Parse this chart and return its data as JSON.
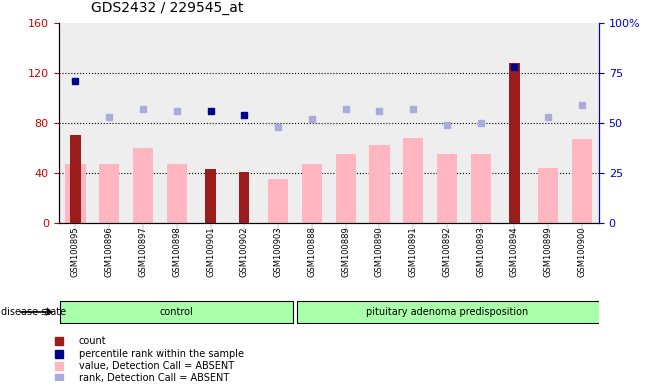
{
  "title": "GDS2432 / 229545_at",
  "samples": [
    "GSM100895",
    "GSM100896",
    "GSM100897",
    "GSM100898",
    "GSM100901",
    "GSM100902",
    "GSM100903",
    "GSM100888",
    "GSM100889",
    "GSM100890",
    "GSM100891",
    "GSM100892",
    "GSM100893",
    "GSM100894",
    "GSM100899",
    "GSM100900"
  ],
  "group_labels": [
    "control",
    "pituitary adenoma predisposition"
  ],
  "group_split": 7,
  "count_values": [
    70,
    0,
    0,
    0,
    43,
    41,
    0,
    0,
    0,
    0,
    0,
    0,
    0,
    128,
    0,
    0
  ],
  "value_absent": [
    47,
    47,
    60,
    47,
    0,
    0,
    35,
    47,
    55,
    62,
    68,
    55,
    55,
    0,
    44,
    67
  ],
  "percentile_rank_present": [
    71,
    null,
    null,
    null,
    56,
    54,
    null,
    null,
    null,
    null,
    null,
    null,
    null,
    78,
    null,
    null
  ],
  "percentile_rank_absent": [
    null,
    53,
    57,
    56,
    null,
    null,
    48,
    52,
    57,
    56,
    57,
    49,
    50,
    null,
    53,
    59
  ],
  "left_ylim": [
    0,
    160
  ],
  "right_ylim": [
    0,
    100
  ],
  "left_yticks": [
    0,
    40,
    80,
    120,
    160
  ],
  "right_yticks": [
    0,
    25,
    50,
    75,
    100
  ],
  "right_yticklabels": [
    "0",
    "25",
    "50",
    "75",
    "100%"
  ],
  "bar_color_dark": "#9B1C1C",
  "bar_color_pink": "#FFB6C1",
  "dot_color_dark_blue": "#00008B",
  "dot_color_light_blue": "#AAAADD",
  "plot_bg": "#EEEEEE",
  "control_color": "#AAFFAA",
  "disease_color": "#AAFFAA",
  "label_color_left": "#CC0000",
  "label_color_right": "#0000CC"
}
